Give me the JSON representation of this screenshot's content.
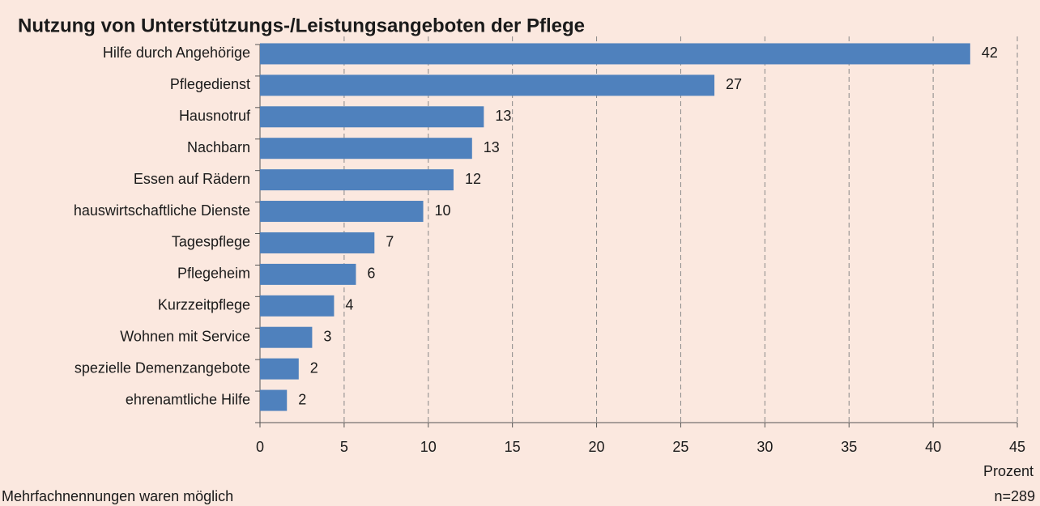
{
  "chart_data": {
    "type": "bar",
    "orientation": "horizontal",
    "title": "Nutzung von Unterstützungs-/Leistungsangeboten der Pflege",
    "categories": [
      "Hilfe durch Angehörige",
      "Pflegedienst",
      "Hausnotruf",
      "Nachbarn",
      "Essen auf Rädern",
      "hauswirtschaftliche Dienste",
      "Tagespflege",
      "Pflegeheim",
      "Kurzzeitpflege",
      "Wohnen mit Service",
      "spezielle Demenzangebote",
      "ehrenamtliche Hilfe"
    ],
    "values": [
      42.2,
      27.0,
      13.3,
      12.6,
      11.5,
      9.7,
      6.8,
      5.7,
      4.4,
      3.1,
      2.3,
      1.6
    ],
    "value_labels": [
      "42",
      "27",
      "13",
      "13",
      "12",
      "10",
      "7",
      "6",
      "4",
      "3",
      "2",
      "2"
    ],
    "color": "#4f81bd",
    "xlim": [
      0,
      45
    ],
    "xticks": [
      0,
      5,
      10,
      15,
      20,
      25,
      30,
      35,
      40,
      45
    ],
    "xlabel": "Prozent",
    "grid": true,
    "footnote": "Mehrfachnennungen waren möglich",
    "sample": "n=289"
  }
}
